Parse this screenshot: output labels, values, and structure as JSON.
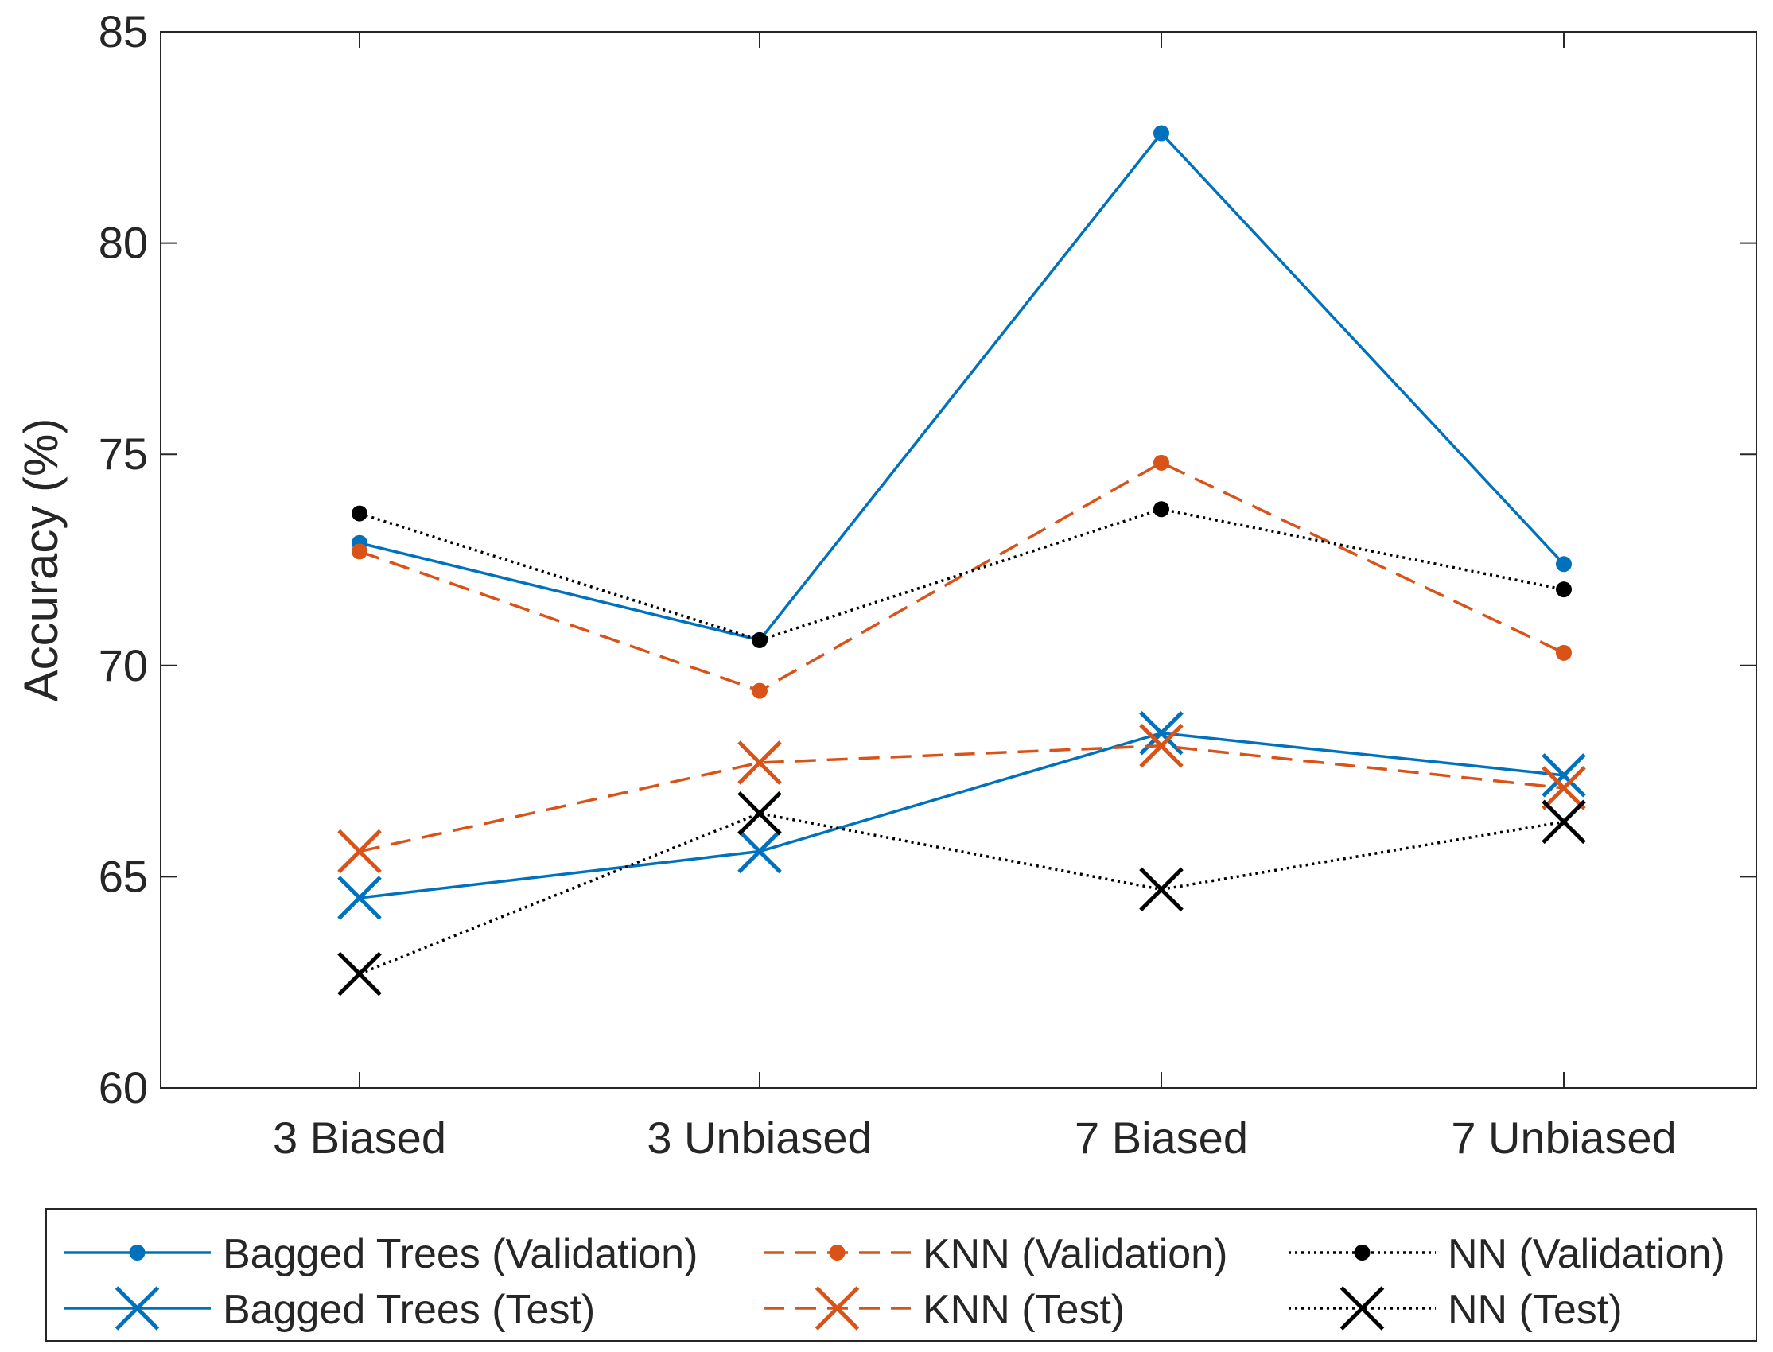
{
  "chart_data": {
    "type": "line",
    "title": "",
    "xlabel": "",
    "ylabel": "Accuracy (%)",
    "categories": [
      "3 Biased",
      "3 Unbiased",
      "7 Biased",
      "7 Unbiased"
    ],
    "ylim": [
      60,
      85
    ],
    "yticks": [
      "60",
      "65",
      "70",
      "75",
      "80",
      "85"
    ],
    "grid": false,
    "legend_position": "bottom",
    "series": [
      {
        "name": "Bagged Trees (Validation)",
        "values": [
          72.9,
          70.6,
          82.6,
          72.4
        ],
        "color": "#0072BD",
        "dash": "solid",
        "marker": "dot"
      },
      {
        "name": "Bagged Trees (Test)",
        "values": [
          64.5,
          65.6,
          68.4,
          67.4
        ],
        "color": "#0072BD",
        "dash": "solid",
        "marker": "x"
      },
      {
        "name": "KNN (Validation)",
        "values": [
          72.7,
          69.4,
          74.8,
          70.3
        ],
        "color": "#D95319",
        "dash": "dashed",
        "marker": "dot"
      },
      {
        "name": "KNN (Test)",
        "values": [
          65.6,
          67.7,
          68.1,
          67.1
        ],
        "color": "#D95319",
        "dash": "dashed",
        "marker": "x"
      },
      {
        "name": "NN (Validation)",
        "values": [
          73.6,
          70.6,
          73.7,
          71.8
        ],
        "color": "#000000",
        "dash": "dotted",
        "marker": "dot"
      },
      {
        "name": "NN (Test)",
        "values": [
          62.7,
          66.5,
          64.7,
          66.3
        ],
        "color": "#000000",
        "dash": "dotted",
        "marker": "x"
      }
    ]
  }
}
